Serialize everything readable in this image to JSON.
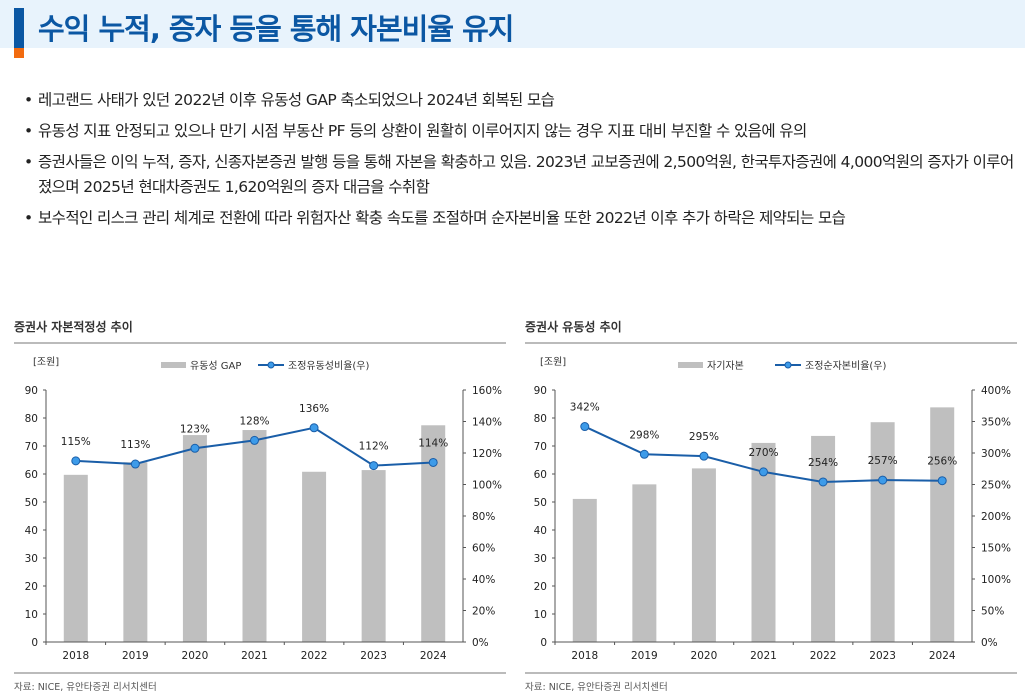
{
  "header": {
    "title": "수익 누적, 증자 등을 통해 자본비율 유지",
    "accent_color": "#0b57a3",
    "secondary_color": "#f26b0f"
  },
  "bullets": [
    "레고랜드 사태가 있던 2022년 이후 유동성 GAP 축소되었으나 2024년 회복된 모습",
    "유동성 지표 안정되고 있으나 만기 시점 부동산 PF 등의 상환이 원활히 이루어지지 않는 경우 지표 대비 부진할 수 있음에 유의",
    "증권사들은 이익 누적, 증자, 신종자본증권 발행 등을 통해 자본을 확충하고 있음. 2023년 교보증권에 2,500억원, 한국투자증권에 4,000억원의 증자가 이루어졌으며 2025년 현대차증권도 1,620억원의 증자 대금을 수취함",
    "보수적인 리스크 관리 체계로 전환에 따라 위험자산 확충 속도를 조절하며 순자본비율 또한 2022년 이후 추가 하락은 제약되는 모습"
  ],
  "bullet_symbol": "•",
  "chart_data": [
    {
      "type": "bar",
      "section_title": "증권사 자본적정성 추이",
      "source": "자료: NICE, 유안타증권 리서치센터",
      "unit_label": "[조원]",
      "categories": [
        "2018",
        "2019",
        "2020",
        "2021",
        "2022",
        "2023",
        "2024"
      ],
      "left_axis": {
        "ylim": [
          0,
          90
        ],
        "ticks": [
          "0",
          "10",
          "20",
          "30",
          "40",
          "50",
          "60",
          "70",
          "80",
          "90"
        ]
      },
      "right_axis": {
        "ylim": [
          0,
          160
        ],
        "ticks": [
          "0%",
          "20%",
          "40%",
          "60%",
          "80%",
          "100%",
          "120%",
          "140%",
          "160%"
        ]
      },
      "series": [
        {
          "name": "유동성 GAP",
          "kind": "bar",
          "axis": "left",
          "values": [
            59.7,
            64.2,
            73.9,
            75.7,
            60.8,
            61.4,
            77.4
          ],
          "color": "#bfbfbf"
        },
        {
          "name": "조정유동성비율(우)",
          "kind": "line",
          "axis": "right",
          "values": [
            115,
            113,
            123,
            128,
            136,
            112,
            114
          ],
          "labels": [
            "115%",
            "113%",
            "123%",
            "128%",
            "136%",
            "112%",
            "114%"
          ],
          "color": "#1a5ea8",
          "marker_color": "#3d9be9"
        }
      ],
      "legend": "top",
      "grid": false
    },
    {
      "type": "bar",
      "section_title": "증권사 유동성 추이",
      "source": "자료: NICE, 유안타증권 리서치센터",
      "unit_label": "[조원]",
      "categories": [
        "2018",
        "2019",
        "2020",
        "2021",
        "2022",
        "2023",
        "2024"
      ],
      "left_axis": {
        "ylim": [
          0,
          90
        ],
        "ticks": [
          "0",
          "10",
          "20",
          "30",
          "40",
          "50",
          "60",
          "70",
          "80",
          "90"
        ]
      },
      "right_axis": {
        "ylim": [
          0,
          400
        ],
        "ticks": [
          "0%",
          "50%",
          "100%",
          "150%",
          "200%",
          "250%",
          "300%",
          "350%",
          "400%"
        ]
      },
      "series": [
        {
          "name": "자기자본",
          "kind": "bar",
          "axis": "left",
          "values": [
            51.1,
            56.3,
            62.0,
            71.1,
            73.6,
            78.5,
            83.8
          ],
          "color": "#bfbfbf"
        },
        {
          "name": "조정순자본비율(우)",
          "kind": "line",
          "axis": "right",
          "values": [
            342,
            298,
            295,
            270,
            254,
            257,
            256
          ],
          "labels": [
            "342%",
            "298%",
            "295%",
            "270%",
            "254%",
            "257%",
            "256%"
          ],
          "color": "#1a5ea8",
          "marker_color": "#3d9be9"
        }
      ],
      "legend": "top",
      "grid": false
    }
  ]
}
